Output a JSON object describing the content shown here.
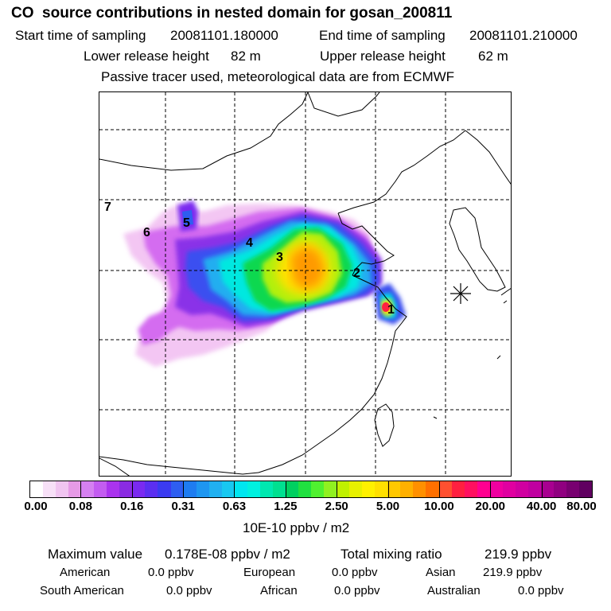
{
  "header": {
    "title": "CO  source contributions in nested domain for gosan_200811",
    "start_label": "Start time of sampling",
    "start_value": "20081101.180000",
    "end_label": "End time of sampling",
    "end_value": "20081101.210000",
    "lower_label": "Lower release height",
    "lower_value": "82 m",
    "upper_label": "Upper release height",
    "upper_value": "62 m",
    "note": "Passive tracer used, meteorological data are from ECMWF"
  },
  "map": {
    "receptor_marker": "asterisk-star-icon",
    "source_labels": [
      "1",
      "2",
      "3",
      "4",
      "5",
      "6",
      "7"
    ]
  },
  "colorbar": {
    "unit": "10E-10 ppbv / m2",
    "tick_labels": [
      "0.00",
      "0.08",
      "0.16",
      "0.31",
      "0.63",
      "1.25",
      "2.50",
      "5.00",
      "10.00",
      "20.00",
      "40.00",
      "80.00"
    ],
    "colors": [
      "#ffffff",
      "#f7e0f7",
      "#f0c4f0",
      "#e69ae6",
      "#d580f0",
      "#c35cf0",
      "#aa33ee",
      "#8a2be2",
      "#7a2af0",
      "#5b2ff0",
      "#3b3bf0",
      "#2e5ef0",
      "#1e7cf0",
      "#1e96f0",
      "#20b0f0",
      "#18c8f0",
      "#00e6f0",
      "#00f0e0",
      "#00e8b0",
      "#00e090",
      "#00d060",
      "#20e040",
      "#50f030",
      "#90f020",
      "#c0f000",
      "#e8f000",
      "#fff000",
      "#ffe000",
      "#ffc800",
      "#ffb000",
      "#ff9000",
      "#ff7000",
      "#ff5030",
      "#ff2040",
      "#ff1060",
      "#ff0090",
      "#f000a0",
      "#e000a0",
      "#d000a0",
      "#c000a0",
      "#a80090",
      "#900080",
      "#780070",
      "#600060"
    ]
  },
  "stats": {
    "max_label": "Maximum value",
    "max_value": "0.178E-08 ppbv / m2",
    "total_label": "Total mixing ratio",
    "total_value": "219.9 ppbv",
    "rows": [
      {
        "name": "American",
        "value": "0.0 ppbv"
      },
      {
        "name": "European",
        "value": "0.0 ppbv"
      },
      {
        "name": "Asian",
        "value": "219.9 ppbv"
      },
      {
        "name": "South American",
        "value": "0.0 ppbv"
      },
      {
        "name": "African",
        "value": "0.0 ppbv"
      },
      {
        "name": "Australian",
        "value": "0.0 ppbv"
      }
    ]
  }
}
